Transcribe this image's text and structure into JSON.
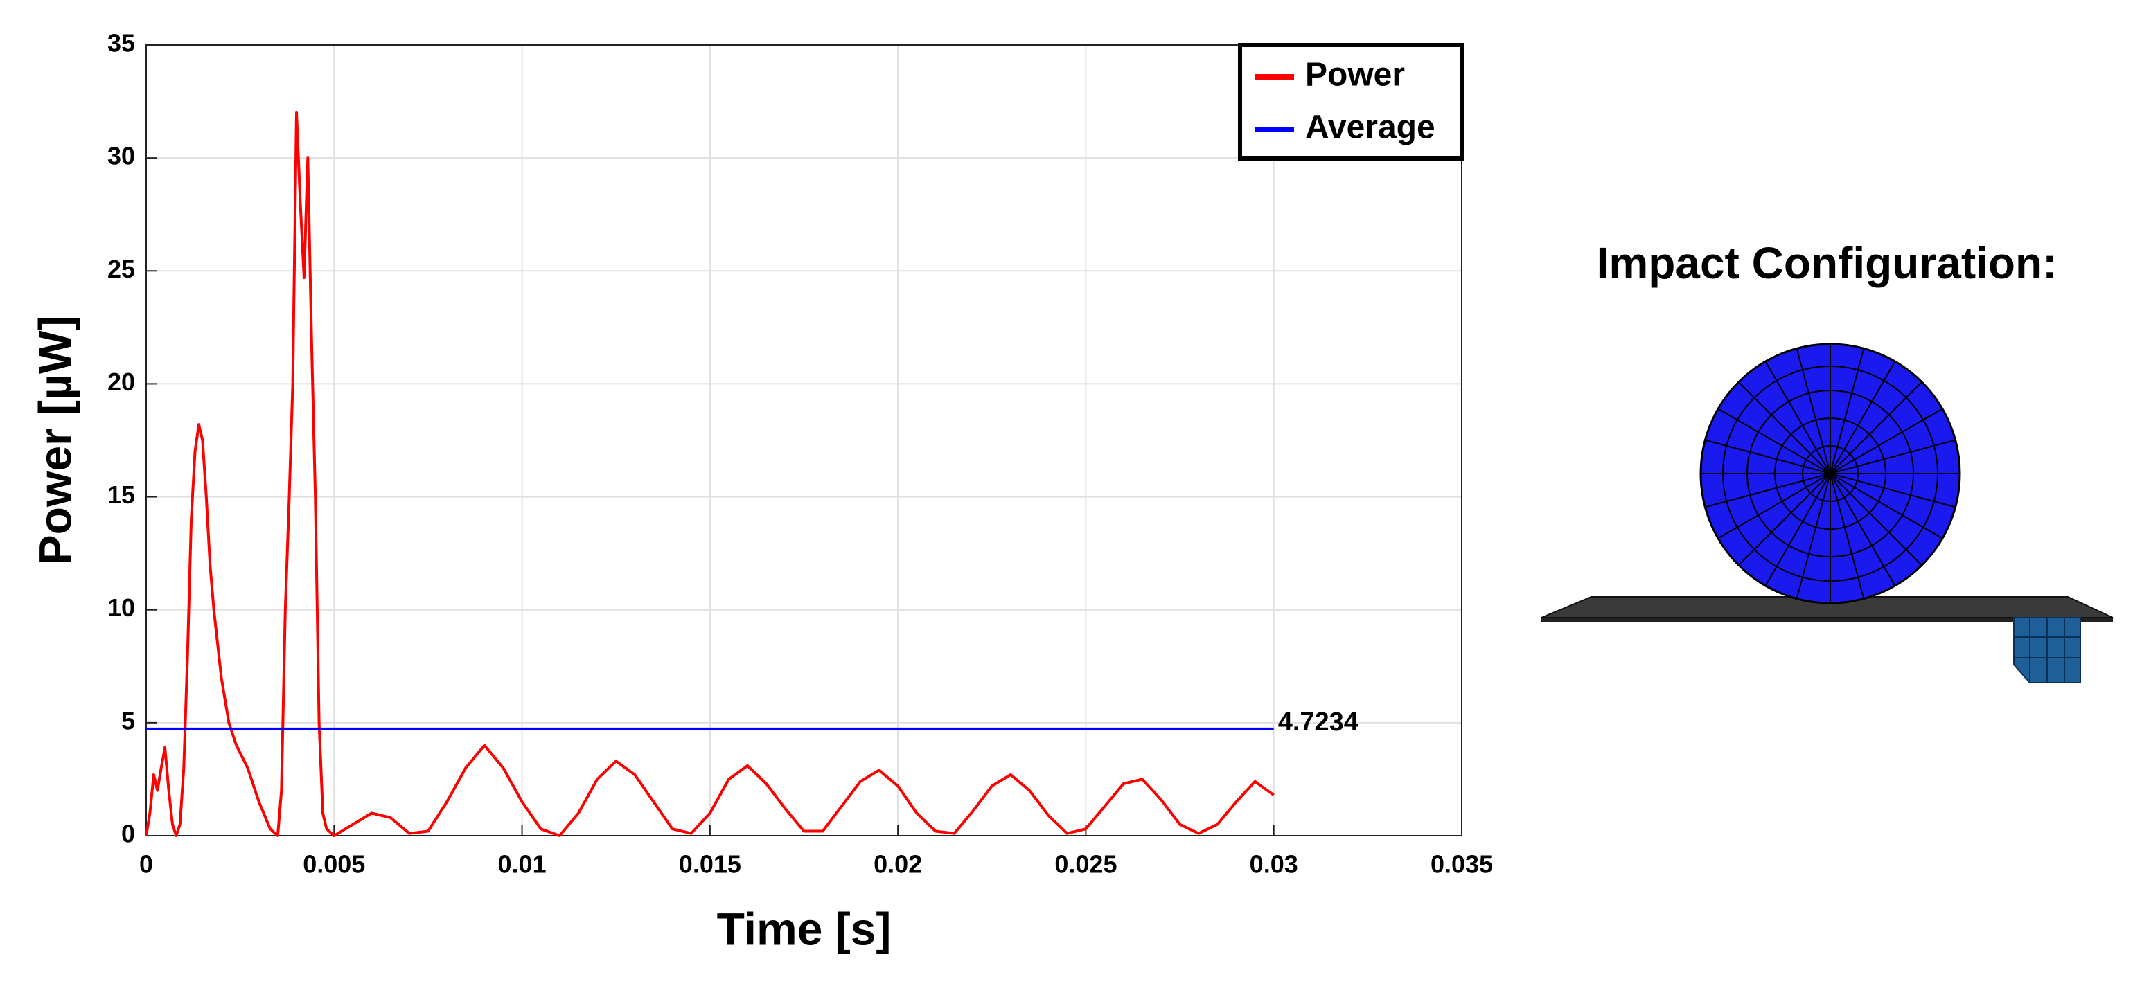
{
  "chart_data": {
    "type": "line",
    "xlabel": "Time [s]",
    "ylabel": "Power [µW]",
    "xlim": [
      0,
      0.035
    ],
    "xticks": [
      0,
      0.005,
      0.01,
      0.015,
      0.02,
      0.025,
      0.03,
      0.035
    ],
    "ylim": [
      0,
      35
    ],
    "yticks": [
      0,
      5,
      10,
      15,
      20,
      25,
      30,
      35
    ],
    "grid": true,
    "legend": "upper right",
    "series": [
      {
        "name": "Power",
        "color": "#ff0000",
        "x": [
          0,
          0.0001,
          0.0002,
          0.0003,
          0.0004,
          0.0005,
          0.0006,
          0.0007,
          0.0008,
          0.0009,
          0.001,
          0.0011,
          0.0012,
          0.0013,
          0.0014,
          0.0015,
          0.0016,
          0.0017,
          0.0018,
          0.002,
          0.0022,
          0.0024,
          0.0027,
          0.003,
          0.0033,
          0.0035,
          0.0036,
          0.0037,
          0.0038,
          0.0039,
          0.004,
          0.0041,
          0.0042,
          0.0043,
          0.0044,
          0.0045,
          0.0046,
          0.0047,
          0.0048,
          0.005,
          0.0055,
          0.006,
          0.0065,
          0.007,
          0.0075,
          0.008,
          0.0085,
          0.009,
          0.0095,
          0.01,
          0.0105,
          0.011,
          0.0115,
          0.012,
          0.0125,
          0.013,
          0.0135,
          0.014,
          0.0145,
          0.015,
          0.0155,
          0.016,
          0.0165,
          0.017,
          0.0175,
          0.018,
          0.0185,
          0.019,
          0.0195,
          0.02,
          0.0205,
          0.021,
          0.0215,
          0.022,
          0.0225,
          0.023,
          0.0235,
          0.024,
          0.0245,
          0.025,
          0.0255,
          0.026,
          0.0265,
          0.027,
          0.0275,
          0.028,
          0.0285,
          0.029,
          0.0295,
          0.03
        ],
        "values": [
          0,
          1,
          2.7,
          2,
          3,
          3.9,
          2,
          0.5,
          0,
          0.5,
          3,
          8,
          14,
          17,
          18.2,
          17.5,
          15,
          12,
          10,
          7,
          5,
          4,
          3,
          1.5,
          0.3,
          0,
          2,
          10,
          14.7,
          20,
          32,
          28,
          24.7,
          30,
          22,
          15,
          5,
          1,
          0.3,
          0,
          0.5,
          1,
          0.8,
          0.1,
          0.2,
          1.5,
          3,
          4,
          3,
          1.5,
          0.3,
          0,
          1,
          2.5,
          3.3,
          2.7,
          1.5,
          0.3,
          0.1,
          1,
          2.5,
          3.1,
          2.3,
          1.2,
          0.2,
          0.2,
          1.3,
          2.4,
          2.9,
          2.2,
          1,
          0.2,
          0.1,
          1.1,
          2.2,
          2.7,
          2,
          0.9,
          0.1,
          0.3,
          1.3,
          2.3,
          2.5,
          1.6,
          0.5,
          0.1,
          0.5,
          1.5,
          2.4,
          1.8
        ]
      },
      {
        "name": "Average",
        "color": "#0000ff",
        "x": [
          0,
          0.03
        ],
        "values": [
          4.7234,
          4.7234
        ]
      }
    ]
  },
  "illustration": {
    "title": "Impact Configuration:"
  }
}
